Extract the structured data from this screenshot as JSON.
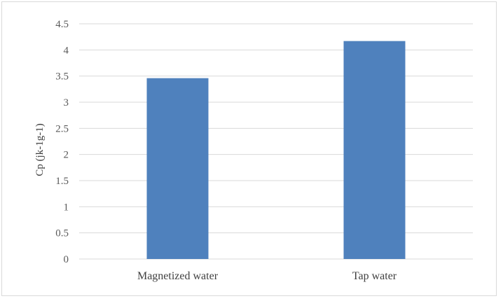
{
  "chart_data": {
    "type": "bar",
    "title": "",
    "xlabel": "",
    "ylabel": "Cp (jk-1g-1)",
    "categories": [
      "Magnetized water",
      "Tap water"
    ],
    "values": [
      3.46,
      4.17
    ],
    "ylim": [
      0,
      4.5
    ],
    "yticks": [
      "0",
      "0.5",
      "1",
      "1.5",
      "2",
      "2.5",
      "3",
      "3.5",
      "4",
      "4.5"
    ],
    "grid": true,
    "legend": "none",
    "bar_color": "#4f81bd",
    "grid_color": "#d9d9d9"
  }
}
